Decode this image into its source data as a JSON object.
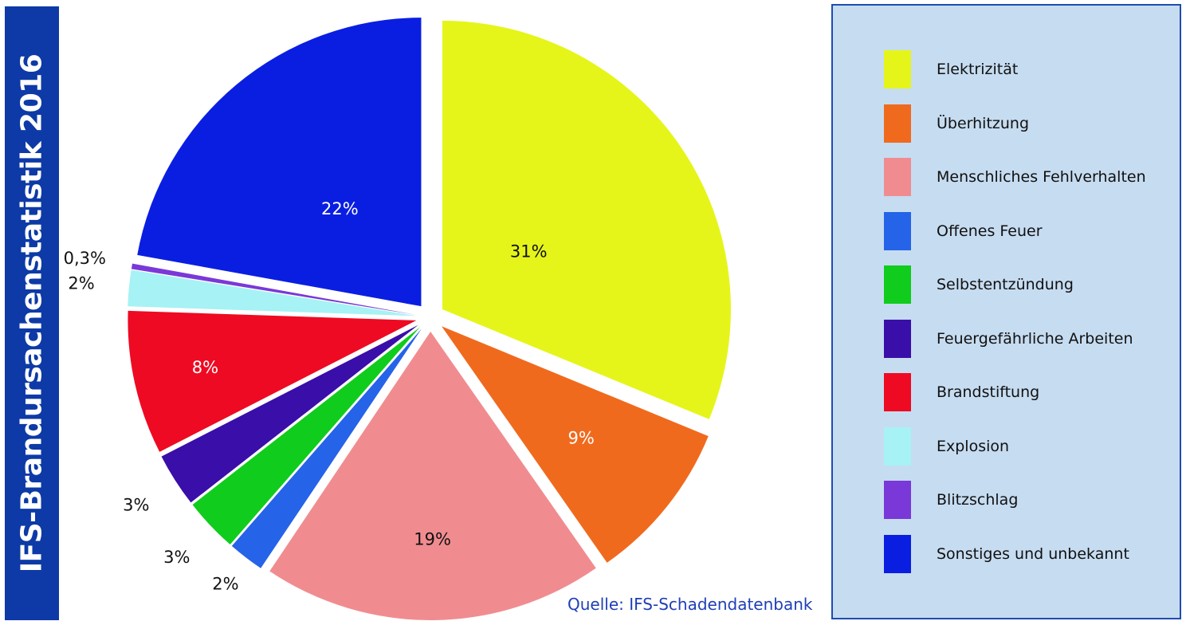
{
  "chart_data": {
    "type": "pie",
    "title": "IFS-Brandursachenstatistik 2016",
    "unit": "%",
    "slices": [
      {
        "label": "Elektrizität",
        "value": 31,
        "display": "31%",
        "color": "#e5f51a",
        "text_color": "#111111"
      },
      {
        "label": "Überhitzung",
        "value": 9,
        "display": "9%",
        "color": "#f06a1e",
        "text_color": "#ffffff"
      },
      {
        "label": "Menschliches Fehlverhalten",
        "value": 19,
        "display": "19%",
        "color": "#f08c90",
        "text_color": "#111111"
      },
      {
        "label": "Offenes Feuer",
        "value": 2,
        "display": "2%",
        "color": "#2563e8",
        "text_color": "#111111"
      },
      {
        "label": "Selbstentzündung",
        "value": 3,
        "display": "3%",
        "color": "#10cc1c",
        "text_color": "#111111"
      },
      {
        "label": "Feuergefährliche Arbeiten",
        "value": 3,
        "display": "3%",
        "color": "#3a0ea8",
        "text_color": "#111111"
      },
      {
        "label": "Brandstiftung",
        "value": 8,
        "display": "8%",
        "color": "#ee0a22",
        "text_color": "#ffffff"
      },
      {
        "label": "Explosion",
        "value": 2,
        "display": "2%",
        "color": "#a6f2f5",
        "text_color": "#111111"
      },
      {
        "label": "Blitzschlag",
        "value": 0.3,
        "display": "0,3%",
        "color": "#7a38d8",
        "text_color": "#111111"
      },
      {
        "label": "Sonstiges und unbekannt",
        "value": 22,
        "display": "22%",
        "color": "#0a1ee2",
        "text_color": "#ffffff"
      }
    ],
    "legend_position": "right",
    "source": "Quelle: IFS-Schadendatenbank"
  }
}
